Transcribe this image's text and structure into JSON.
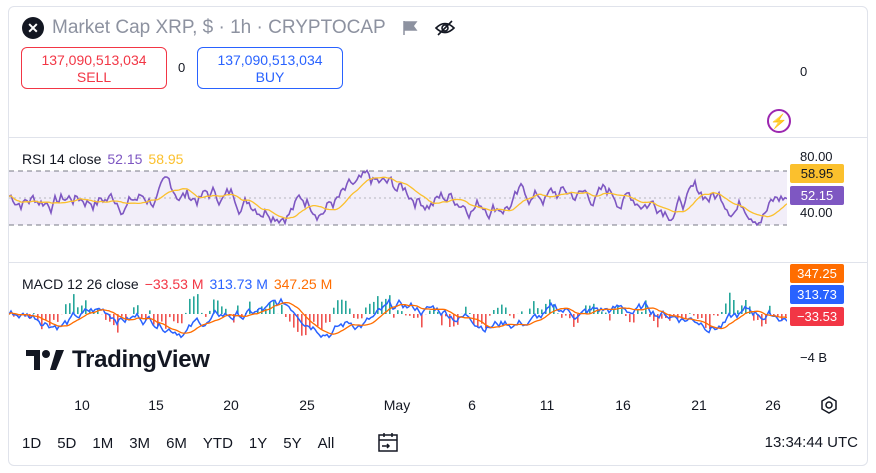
{
  "header": {
    "logo_glyph": "✕",
    "title": "Market Cap XRP, $ · 1h · CRYPTOCAP"
  },
  "trade": {
    "sell_value": "137,090,513,034",
    "sell_label": "SELL",
    "buy_value": "137,090,513,034",
    "buy_label": "BUY",
    "spread": "0"
  },
  "price_scale": {
    "zero": "0"
  },
  "rsi": {
    "label": "RSI 14 close",
    "value1": "52.15",
    "value2": "58.95",
    "scale_top": "80.00",
    "scale_bottom": "40.00",
    "tag_yellow": "58.95",
    "tag_purple": "52.15",
    "colors": {
      "rsi": "#7e57c2",
      "ma": "#fbc02d"
    }
  },
  "macd": {
    "label": "MACD 12 26 close",
    "hist": "−33.53 M",
    "macd": "313.73 M",
    "signal": "347.25 M",
    "tag_orange": "347.25 M",
    "tag_blue": "313.73 M",
    "tag_red": "−33.53 M",
    "scale_low": "−4 B",
    "colors": {
      "macd": "#2962ff",
      "signal": "#ff6d00",
      "hist_pos": "#26a69a",
      "hist_neg": "#ef5350"
    }
  },
  "branding": {
    "name": "TradingView"
  },
  "xaxis": {
    "labels": [
      "10",
      "15",
      "20",
      "25",
      "May",
      "6",
      "11",
      "16",
      "21",
      "26"
    ]
  },
  "timeframes": [
    "1D",
    "5D",
    "1M",
    "3M",
    "6M",
    "YTD",
    "1Y",
    "5Y",
    "All"
  ],
  "clock": "13:34:44 UTC"
}
